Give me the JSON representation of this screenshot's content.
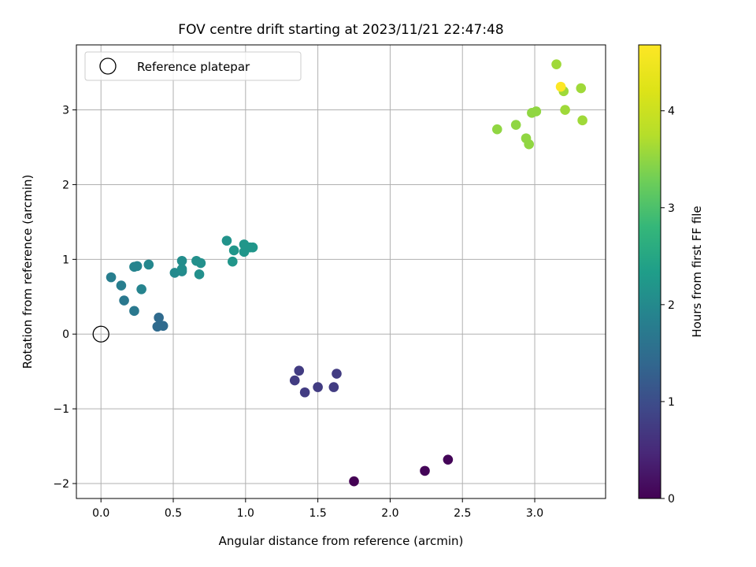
{
  "chart_data": {
    "type": "scatter",
    "title": "FOV centre drift starting at 2023/11/21 22:47:48",
    "xlabel": "Angular distance from reference (arcmin)",
    "ylabel": "Rotation from reference (arcmin)",
    "xlim": [
      -0.17,
      3.49
    ],
    "ylim": [
      -2.2,
      3.87
    ],
    "xticks": [
      0.0,
      0.5,
      1.0,
      1.5,
      2.0,
      2.5,
      3.0
    ],
    "xtick_labels": [
      "0.0",
      "0.5",
      "1.0",
      "1.5",
      "2.0",
      "2.5",
      "3.0"
    ],
    "yticks": [
      -2,
      -1,
      0,
      1,
      2,
      3
    ],
    "ytick_labels": [
      "−2",
      "−1",
      "0",
      "1",
      "2",
      "3"
    ],
    "grid": true,
    "legend": {
      "placement": "top-left",
      "entries": [
        "Reference platepar"
      ]
    },
    "reference_point": {
      "x": 0.0,
      "y": 0.0,
      "marker": "open-circle"
    },
    "colorbar": {
      "label": "Hours from first FF file",
      "colormap": "viridis",
      "range": [
        0,
        4.68
      ],
      "ticks": [
        0,
        1,
        2,
        3,
        4
      ],
      "tick_labels": [
        "0",
        "1",
        "2",
        "3",
        "4"
      ]
    },
    "points": [
      {
        "x": 1.75,
        "y": -1.97,
        "c": 0.0
      },
      {
        "x": 2.24,
        "y": -1.83,
        "c": 0.05
      },
      {
        "x": 2.4,
        "y": -1.68,
        "c": 0.05
      },
      {
        "x": 1.34,
        "y": -0.62,
        "c": 0.75
      },
      {
        "x": 1.37,
        "y": -0.49,
        "c": 0.75
      },
      {
        "x": 1.41,
        "y": -0.78,
        "c": 0.75
      },
      {
        "x": 1.5,
        "y": -0.71,
        "c": 0.75
      },
      {
        "x": 1.61,
        "y": -0.71,
        "c": 0.75
      },
      {
        "x": 1.63,
        "y": -0.53,
        "c": 0.75
      },
      {
        "x": 0.4,
        "y": 0.22,
        "c": 1.45
      },
      {
        "x": 0.39,
        "y": 0.1,
        "c": 1.45
      },
      {
        "x": 0.43,
        "y": 0.11,
        "c": 1.45
      },
      {
        "x": 0.16,
        "y": 0.45,
        "c": 1.7
      },
      {
        "x": 0.23,
        "y": 0.31,
        "c": 1.7
      },
      {
        "x": 0.07,
        "y": 0.76,
        "c": 1.8
      },
      {
        "x": 0.14,
        "y": 0.65,
        "c": 1.8
      },
      {
        "x": 0.28,
        "y": 0.6,
        "c": 1.9
      },
      {
        "x": 0.23,
        "y": 0.9,
        "c": 1.9
      },
      {
        "x": 0.25,
        "y": 0.91,
        "c": 1.9
      },
      {
        "x": 0.33,
        "y": 0.93,
        "c": 1.95
      },
      {
        "x": 0.51,
        "y": 0.82,
        "c": 2.0
      },
      {
        "x": 0.56,
        "y": 0.84,
        "c": 2.0
      },
      {
        "x": 0.56,
        "y": 0.98,
        "c": 2.05
      },
      {
        "x": 0.56,
        "y": 0.87,
        "c": 2.05
      },
      {
        "x": 0.66,
        "y": 0.98,
        "c": 2.1
      },
      {
        "x": 0.69,
        "y": 0.95,
        "c": 2.1
      },
      {
        "x": 0.68,
        "y": 0.8,
        "c": 2.1
      },
      {
        "x": 0.87,
        "y": 1.25,
        "c": 2.15
      },
      {
        "x": 0.92,
        "y": 1.12,
        "c": 2.2
      },
      {
        "x": 0.91,
        "y": 0.97,
        "c": 2.2
      },
      {
        "x": 0.99,
        "y": 1.2,
        "c": 2.2
      },
      {
        "x": 0.99,
        "y": 1.1,
        "c": 2.2
      },
      {
        "x": 1.03,
        "y": 1.16,
        "c": 2.2
      },
      {
        "x": 1.05,
        "y": 1.16,
        "c": 2.2
      },
      {
        "x": 2.74,
        "y": 2.74,
        "c": 3.5
      },
      {
        "x": 2.87,
        "y": 2.8,
        "c": 3.5
      },
      {
        "x": 2.94,
        "y": 2.62,
        "c": 3.5
      },
      {
        "x": 2.96,
        "y": 2.54,
        "c": 3.5
      },
      {
        "x": 2.98,
        "y": 2.96,
        "c": 3.5
      },
      {
        "x": 3.01,
        "y": 2.98,
        "c": 3.5
      },
      {
        "x": 3.15,
        "y": 3.61,
        "c": 3.6
      },
      {
        "x": 3.2,
        "y": 3.25,
        "c": 3.6
      },
      {
        "x": 3.21,
        "y": 3.0,
        "c": 3.6
      },
      {
        "x": 3.32,
        "y": 3.29,
        "c": 3.6
      },
      {
        "x": 3.33,
        "y": 2.86,
        "c": 3.6
      },
      {
        "x": 3.18,
        "y": 3.31,
        "c": 4.68
      }
    ]
  }
}
